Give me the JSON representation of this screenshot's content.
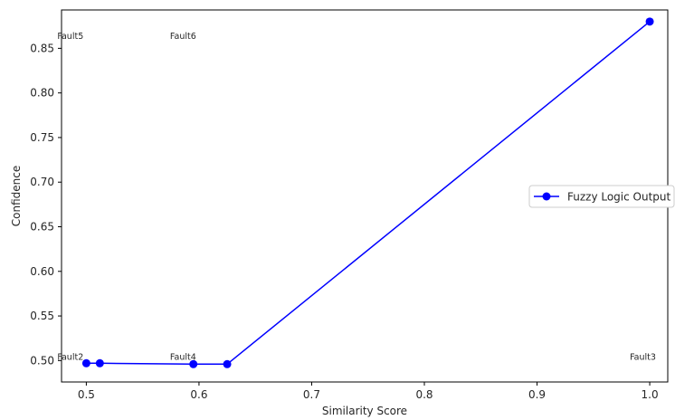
{
  "chart_data": {
    "type": "line",
    "title": "",
    "xlabel": "Similarity Score",
    "ylabel": "Confidence",
    "xlim": [
      0.478,
      1.016
    ],
    "ylim": [
      0.476,
      0.893
    ],
    "xticks": [
      0.5,
      0.6,
      0.7,
      0.8,
      0.9,
      1.0
    ],
    "xtick_labels": [
      "0.5",
      "0.6",
      "0.7",
      "0.8",
      "0.9",
      "1.0"
    ],
    "yticks": [
      0.5,
      0.55,
      0.6,
      0.65,
      0.7,
      0.75,
      0.8,
      0.85
    ],
    "ytick_labels": [
      "0.50",
      "0.55",
      "0.60",
      "0.65",
      "0.70",
      "0.75",
      "0.80",
      "0.85"
    ],
    "grid": false,
    "legend_position": "center-right",
    "series": [
      {
        "name": "Fuzzy Logic Output",
        "color": "#0000ff",
        "marker": "circle",
        "x": [
          0.5,
          0.512,
          0.595,
          0.625,
          1.0
        ],
        "y": [
          0.497,
          0.497,
          0.496,
          0.496,
          0.88
        ]
      }
    ],
    "annotations": [
      {
        "text": "Fault2",
        "x": 0.5,
        "y": 0.5
      },
      {
        "text": "Fault4",
        "x": 0.6,
        "y": 0.5
      },
      {
        "text": "Fault3",
        "x": 1.0,
        "y": 0.5
      },
      {
        "text": "Fault5",
        "x": 0.5,
        "y": 0.88
      },
      {
        "text": "Fault6",
        "x": 0.6,
        "y": 0.88
      }
    ]
  }
}
